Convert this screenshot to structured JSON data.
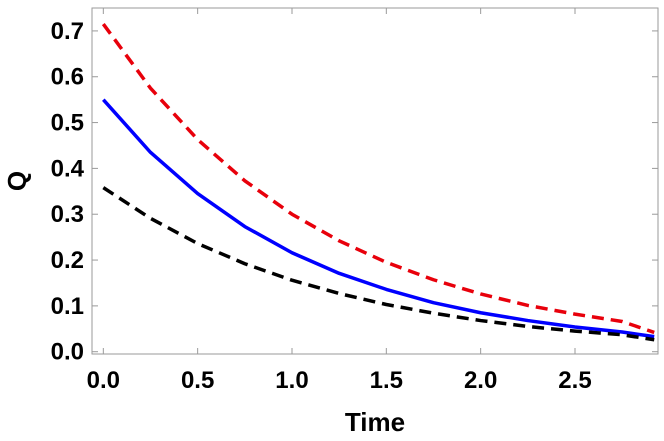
{
  "chart_data": {
    "type": "line",
    "title": "",
    "xlabel": "Time",
    "ylabel": "Q",
    "xlim": [
      -0.06,
      2.94
    ],
    "ylim": [
      -0.005,
      0.75
    ],
    "xticks": [
      "0.0",
      "0.5",
      "1.0",
      "1.5",
      "2.0",
      "2.5"
    ],
    "yticks": [
      "0.0",
      "0.1",
      "0.2",
      "0.3",
      "0.4",
      "0.5",
      "0.6",
      "0.7"
    ],
    "grid": false,
    "legend": "none",
    "series": [
      {
        "color": "#e8000b",
        "style": "dashed",
        "x": [
          0.0,
          0.25,
          0.5,
          0.75,
          1.0,
          1.25,
          1.5,
          1.75,
          2.0,
          2.25,
          2.5,
          2.75,
          2.92
        ],
        "y": [
          0.715,
          0.575,
          0.463,
          0.373,
          0.3,
          0.242,
          0.195,
          0.157,
          0.126,
          0.101,
          0.082,
          0.066,
          0.042
        ]
      },
      {
        "color": "#0000ff",
        "style": "solid",
        "x": [
          0.0,
          0.25,
          0.5,
          0.75,
          1.0,
          1.25,
          1.5,
          1.75,
          2.0,
          2.25,
          2.5,
          2.75,
          2.92
        ],
        "y": [
          0.55,
          0.435,
          0.345,
          0.273,
          0.216,
          0.171,
          0.136,
          0.107,
          0.085,
          0.068,
          0.054,
          0.043,
          0.033
        ]
      },
      {
        "color": "#000000",
        "style": "dashed",
        "x": [
          0.0,
          0.25,
          0.5,
          0.75,
          1.0,
          1.25,
          1.5,
          1.75,
          2.0,
          2.25,
          2.5,
          2.75,
          2.92
        ],
        "y": [
          0.358,
          0.291,
          0.236,
          0.192,
          0.156,
          0.127,
          0.103,
          0.084,
          0.068,
          0.055,
          0.045,
          0.037,
          0.026
        ]
      }
    ]
  }
}
